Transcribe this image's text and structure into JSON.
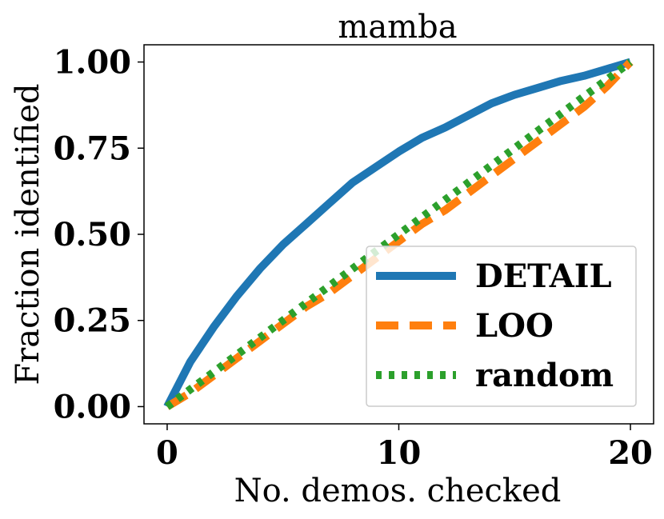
{
  "chart_data": {
    "type": "line",
    "title": "mamba",
    "xlabel": "No. demos. checked",
    "ylabel": "Fraction identified",
    "xlim": [
      -1,
      21
    ],
    "ylim": [
      -0.05,
      1.05
    ],
    "xticks": [
      0,
      10,
      20
    ],
    "xtick_labels": [
      "0",
      "10",
      "20"
    ],
    "yticks": [
      0,
      0.25,
      0.5,
      0.75,
      1.0
    ],
    "ytick_labels": [
      "0.00",
      "0.25",
      "0.50",
      "0.75",
      "1.00"
    ],
    "grid": false,
    "legend_position": "lower right",
    "x": [
      0,
      1,
      2,
      3,
      4,
      5,
      6,
      7,
      8,
      9,
      10,
      11,
      12,
      13,
      14,
      15,
      16,
      17,
      18,
      19,
      20
    ],
    "series": [
      {
        "name": "DETAIL",
        "color": "#1f77b4",
        "style": "solid",
        "values": [
          0.0,
          0.13,
          0.23,
          0.32,
          0.4,
          0.47,
          0.53,
          0.59,
          0.65,
          0.695,
          0.74,
          0.78,
          0.81,
          0.845,
          0.88,
          0.905,
          0.925,
          0.945,
          0.96,
          0.98,
          1.0
        ]
      },
      {
        "name": "LOO",
        "color": "#ff7f0e",
        "style": "dashed",
        "values": [
          0.0,
          0.04,
          0.09,
          0.14,
          0.19,
          0.24,
          0.29,
          0.33,
          0.38,
          0.43,
          0.48,
          0.53,
          0.57,
          0.62,
          0.67,
          0.72,
          0.77,
          0.82,
          0.87,
          0.93,
          1.0
        ]
      },
      {
        "name": "random",
        "color": "#2ca02c",
        "style": "dotted",
        "values": [
          0.0,
          0.05,
          0.1,
          0.15,
          0.2,
          0.25,
          0.3,
          0.35,
          0.4,
          0.45,
          0.5,
          0.55,
          0.6,
          0.65,
          0.7,
          0.75,
          0.8,
          0.85,
          0.9,
          0.95,
          1.0
        ]
      }
    ]
  }
}
